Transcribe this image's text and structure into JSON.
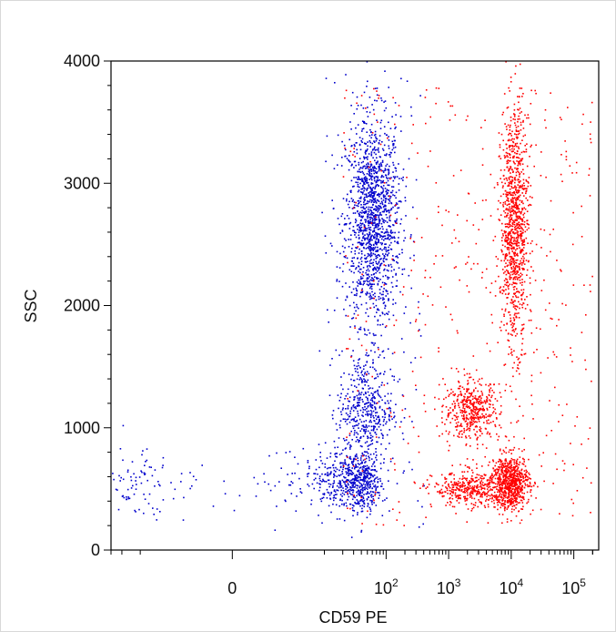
{
  "chart_data": {
    "type": "scatter",
    "title": "",
    "xlabel": "CD59 PE",
    "ylabel": "SSC",
    "x_scale": "biexponential (logicle)",
    "x_range": [
      -30,
      250000
    ],
    "ylim": [
      0,
      4000
    ],
    "grid": false,
    "legend": "none",
    "x_ticks": [
      {
        "value": 0,
        "label": "0",
        "exp": ""
      },
      {
        "value": 100,
        "label": "10",
        "exp": "2"
      },
      {
        "value": 1000,
        "label": "10",
        "exp": "3"
      },
      {
        "value": 10000,
        "label": "10",
        "exp": "4"
      },
      {
        "value": 100000,
        "label": "10",
        "exp": "5"
      }
    ],
    "y_ticks": [
      0,
      1000,
      2000,
      3000,
      4000
    ],
    "series": [
      {
        "color": "#0000cc",
        "populations": [
          {
            "x_center": 60,
            "y_center": 2700,
            "x_spread_decades": 0.22,
            "y_spread": 420,
            "weight": 0.55
          },
          {
            "x_center": 45,
            "y_center": 1150,
            "x_spread_decades": 0.22,
            "y_spread": 230,
            "weight": 0.17
          },
          {
            "x_center": 25,
            "y_center": 560,
            "x_spread_decades": 0.25,
            "y_spread": 130,
            "weight": 0.28
          }
        ]
      },
      {
        "color": "#ff0000",
        "populations": [
          {
            "x_center": 11000,
            "y_center": 2650,
            "x_spread_decades": 0.11,
            "y_spread": 480,
            "weight": 0.4
          },
          {
            "x_center": 2300,
            "y_center": 1150,
            "x_spread_decades": 0.22,
            "y_spread": 120,
            "weight": 0.17
          },
          {
            "x_center": 2200,
            "y_center": 500,
            "x_spread_decades": 0.3,
            "y_spread": 70,
            "weight": 0.15
          },
          {
            "x_center": 9500,
            "y_center": 560,
            "x_spread_decades": 0.15,
            "y_spread": 110,
            "weight": 0.28
          }
        ]
      }
    ]
  }
}
